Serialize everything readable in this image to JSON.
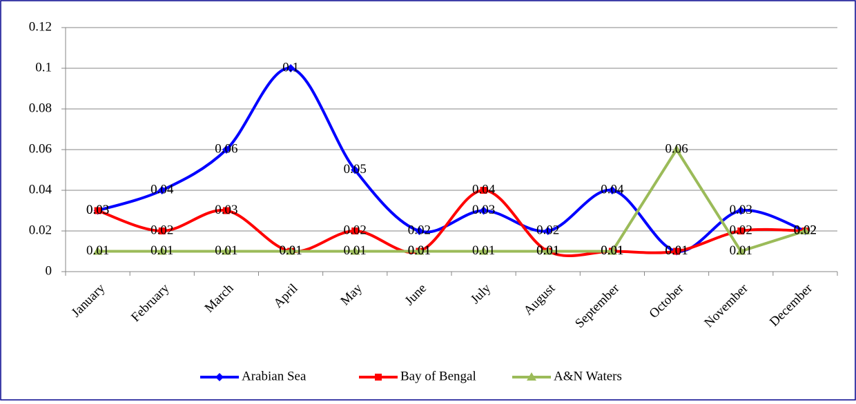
{
  "chart_data": {
    "type": "line",
    "categories": [
      "January",
      "February",
      "March",
      "April",
      "May",
      "June",
      "July",
      "August",
      "September",
      "October",
      "November",
      "December"
    ],
    "series": [
      {
        "name": "Arabian Sea",
        "color": "#0000ff",
        "smooth": true,
        "marker": "diamond",
        "values": [
          0.03,
          0.04,
          0.06,
          0.1,
          0.05,
          0.02,
          0.03,
          0.02,
          0.04,
          0.01,
          0.03,
          0.02
        ]
      },
      {
        "name": "Bay of Bengal",
        "color": "#ff0000",
        "smooth": true,
        "marker": "square",
        "values": [
          0.03,
          0.02,
          0.03,
          0.01,
          0.02,
          0.01,
          0.04,
          0.01,
          0.01,
          0.01,
          0.02,
          0.02
        ]
      },
      {
        "name": "A&N Waters",
        "color": "#9bbb59",
        "smooth": false,
        "marker": "triangle",
        "values": [
          0.01,
          0.01,
          0.01,
          0.01,
          0.01,
          0.01,
          0.01,
          0.01,
          0.01,
          0.06,
          0.01,
          0.02
        ]
      }
    ],
    "ylim": [
      0,
      0.12
    ],
    "yticks": [
      0,
      0.02,
      0.04,
      0.06,
      0.08,
      0.1,
      0.12
    ],
    "grid": true,
    "legend": "bottom"
  }
}
